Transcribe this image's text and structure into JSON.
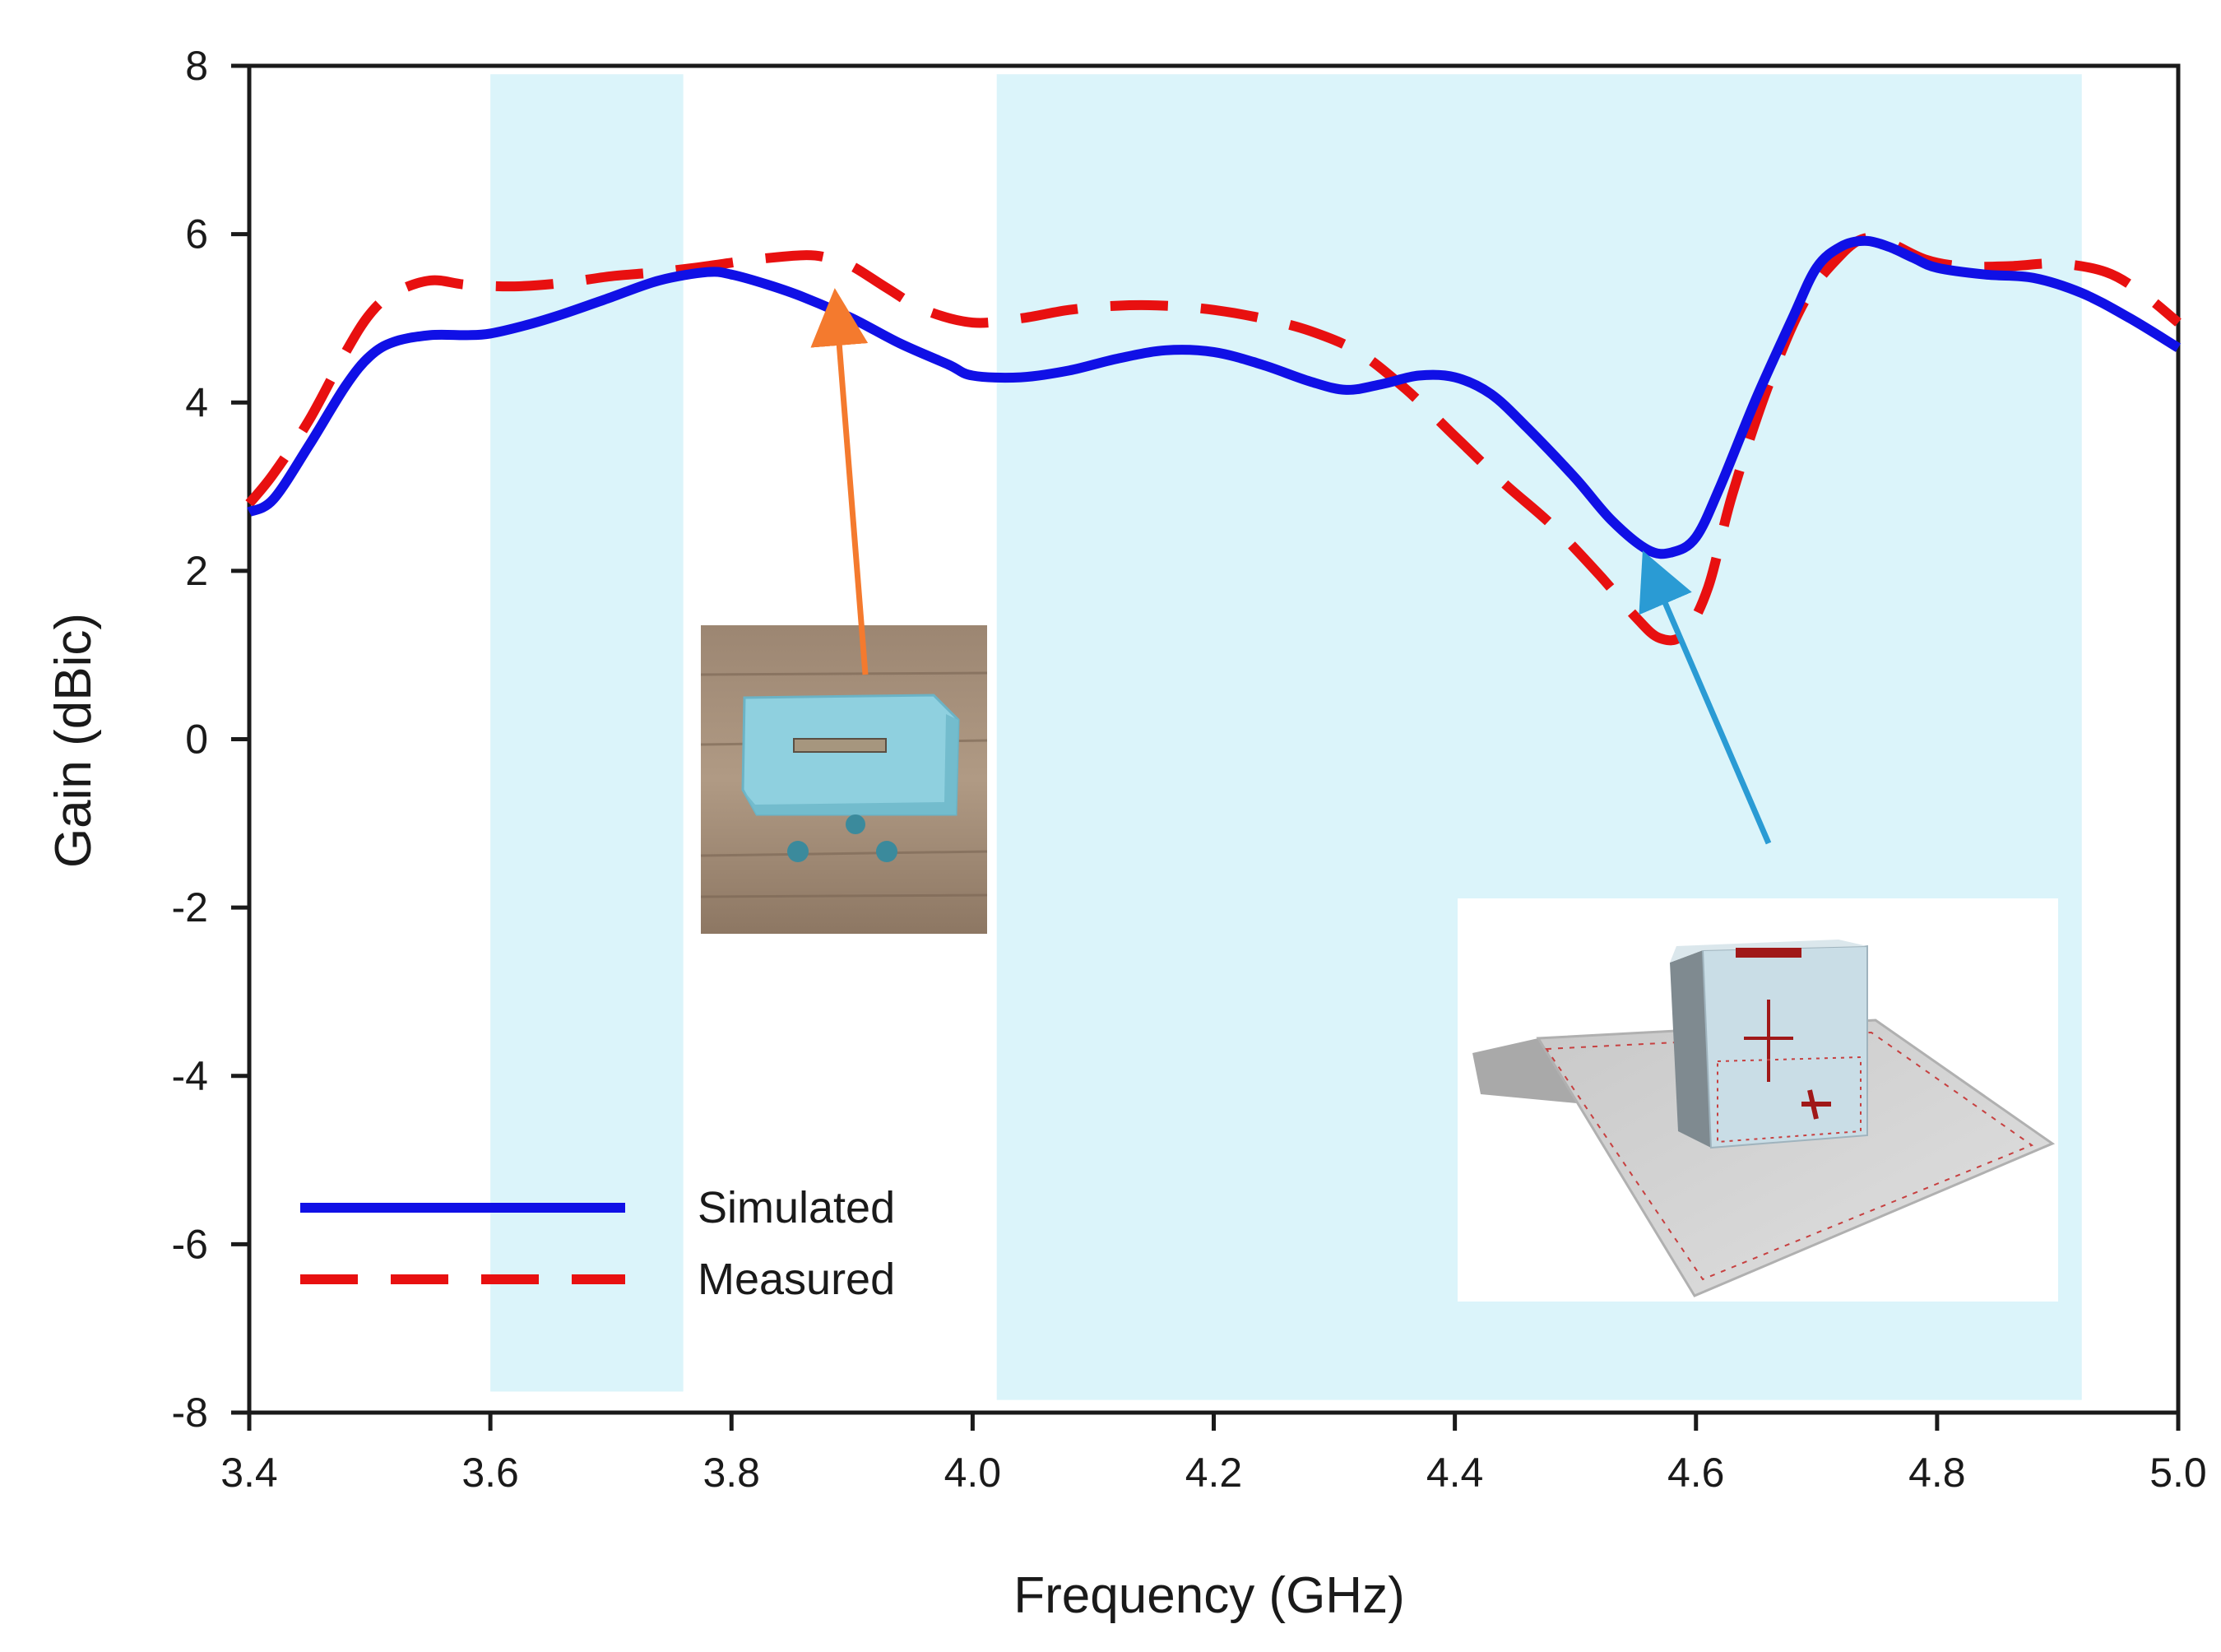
{
  "chart_data": {
    "type": "line",
    "title": "",
    "xlabel": "Frequency (GHz)",
    "ylabel": "Gain (dBic)",
    "xlim": [
      3.4,
      5.0
    ],
    "ylim": [
      -8,
      8
    ],
    "x_ticks": [
      "3.4",
      "3.6",
      "3.8",
      "4.0",
      "4.2",
      "4.4",
      "4.6",
      "4.8",
      "5.0"
    ],
    "y_ticks": [
      "8",
      "6",
      "4",
      "2",
      "0",
      "-2",
      "-4",
      "-6",
      "-8"
    ],
    "grid": false,
    "legend_position": "bottom-left",
    "shaded_bands": [
      {
        "x_start": 3.6,
        "x_end": 3.76,
        "y_start": -7.75,
        "y_end": 7.9
      },
      {
        "x_start": 4.02,
        "x_end": 4.92,
        "y_start": -7.85,
        "y_end": 7.9
      }
    ],
    "series": [
      {
        "name": "Simulated",
        "color": "#1010e6",
        "style": "solid",
        "x": [
          3.4,
          3.42,
          3.45,
          3.48,
          3.5,
          3.52,
          3.55,
          3.58,
          3.6,
          3.63,
          3.66,
          3.7,
          3.74,
          3.78,
          3.8,
          3.83,
          3.86,
          3.9,
          3.94,
          3.98,
          4.0,
          4.04,
          4.08,
          4.12,
          4.16,
          4.2,
          4.24,
          4.28,
          4.31,
          4.34,
          4.37,
          4.4,
          4.43,
          4.46,
          4.5,
          4.53,
          4.56,
          4.58,
          4.6,
          4.62,
          4.65,
          4.68,
          4.7,
          4.72,
          4.74,
          4.76,
          4.78,
          4.8,
          4.84,
          4.88,
          4.92,
          4.96,
          5.0
        ],
        "y": [
          2.7,
          2.85,
          3.5,
          4.2,
          4.55,
          4.72,
          4.8,
          4.8,
          4.82,
          4.92,
          5.05,
          5.25,
          5.45,
          5.55,
          5.52,
          5.4,
          5.25,
          5.0,
          4.7,
          4.45,
          4.32,
          4.3,
          4.38,
          4.52,
          4.62,
          4.6,
          4.45,
          4.25,
          4.15,
          4.22,
          4.32,
          4.3,
          4.1,
          3.7,
          3.1,
          2.6,
          2.25,
          2.22,
          2.4,
          3.0,
          4.05,
          5.0,
          5.6,
          5.85,
          5.92,
          5.85,
          5.72,
          5.6,
          5.52,
          5.48,
          5.3,
          5.0,
          4.65
        ]
      },
      {
        "name": "Measured",
        "color": "#e81010",
        "style": "dashed",
        "x": [
          3.4,
          3.42,
          3.45,
          3.48,
          3.5,
          3.52,
          3.55,
          3.58,
          3.62,
          3.66,
          3.7,
          3.74,
          3.78,
          3.82,
          3.86,
          3.88,
          3.9,
          3.93,
          3.96,
          4.0,
          4.04,
          4.08,
          4.12,
          4.16,
          4.2,
          4.24,
          4.28,
          4.32,
          4.36,
          4.4,
          4.44,
          4.48,
          4.52,
          4.55,
          4.57,
          4.59,
          4.61,
          4.63,
          4.66,
          4.69,
          4.72,
          4.74,
          4.76,
          4.79,
          4.82,
          4.86,
          4.9,
          4.94,
          4.97,
          5.0
        ],
        "y": [
          2.8,
          3.15,
          3.8,
          4.6,
          5.05,
          5.3,
          5.45,
          5.4,
          5.38,
          5.42,
          5.5,
          5.55,
          5.62,
          5.7,
          5.75,
          5.72,
          5.62,
          5.35,
          5.1,
          4.95,
          5.0,
          5.1,
          5.15,
          5.15,
          5.1,
          5.0,
          4.85,
          4.6,
          4.15,
          3.6,
          3.05,
          2.55,
          1.95,
          1.45,
          1.2,
          1.25,
          1.8,
          2.9,
          4.2,
          5.2,
          5.75,
          5.95,
          5.9,
          5.7,
          5.62,
          5.62,
          5.65,
          5.55,
          5.3,
          4.95
        ]
      }
    ],
    "annotations": [
      {
        "type": "arrow",
        "color": "#f47a2e",
        "target_x": 3.89,
        "target_y": 5.75
      },
      {
        "type": "arrow",
        "color": "#2a9bd4",
        "target_x": 4.56,
        "target_y": 2.15
      }
    ]
  }
}
